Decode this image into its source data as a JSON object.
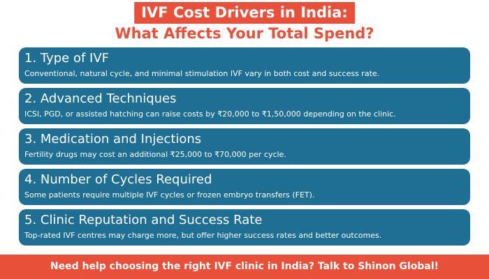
{
  "header": {
    "title_line1": "IVF Cost Drivers in India:",
    "title_line2": "What Affects Your Total Spend?"
  },
  "items": [
    {
      "title": "1. Type of IVF",
      "description": "Conventional, natural cycle, and minimal stimulation IVF vary in both cost and success rate."
    },
    {
      "title": "2. Advanced Techniques",
      "description": "ICSI, PGD, or assisted hatching can raise costs by ₹20,000 to ₹1,50,000 depending on the clinic."
    },
    {
      "title": "3. Medication and Injections",
      "description": "Fertility drugs may cost an additional ₹25,000 to ₹70,000 per cycle."
    },
    {
      "title": "4. Number of Cycles Required",
      "description": "Some patients require multiple IVF cycles or frozen embryo transfers (FET)."
    },
    {
      "title": "5. Clinic Reputation and Success Rate",
      "description": "Top-rated IVF centres may charge more, but offer higher success rates and better outcomes."
    }
  ],
  "footer": {
    "text": "Need help choosing the right IVF clinic in India? Talk to Shinon Global!"
  }
}
